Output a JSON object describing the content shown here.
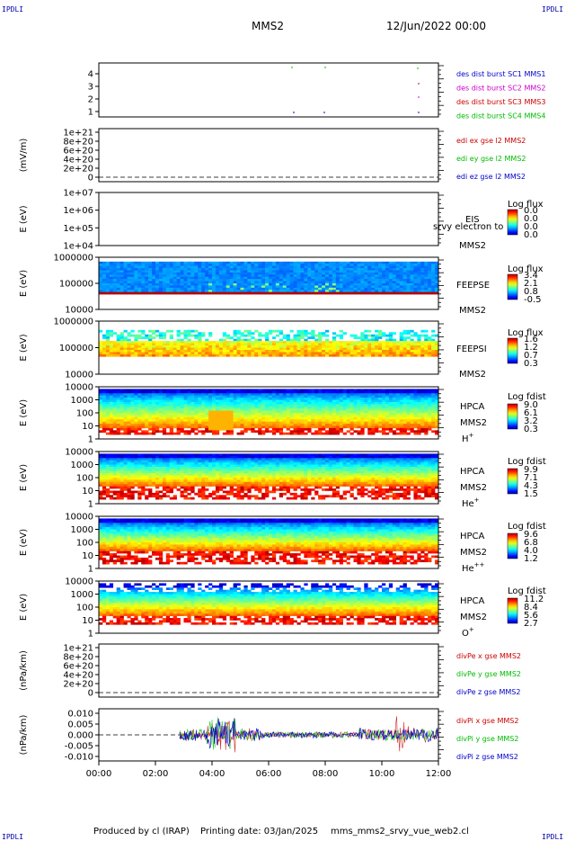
{
  "header": {
    "corner_left_top": "IPDLI",
    "corner_right_top": "IPDLI",
    "corner_left_bottom": "IPDLI",
    "corner_right_bottom": "IPDLI",
    "spacecraft": "MMS2",
    "datetime": "12/Jun/2022 00:00"
  },
  "footer": {
    "produced_by": "Produced by cl (IRAP)",
    "printing_date": "Printing date: 03/Jan/2025",
    "filename": "mms_mms2_srvy_vue_web2.cl"
  },
  "colors": {
    "blue": "#0000cc",
    "magenta": "#cc00cc",
    "red": "#cc0000",
    "green": "#00bb00"
  },
  "chart_data": [
    {
      "type": "line",
      "id": "burst",
      "ylabel": "",
      "yticks": [
        "1",
        "2",
        "3",
        "4"
      ],
      "legend": [
        "des dist burst SC1 MMS1",
        "des dist burst SC2 MMS2",
        "des dist burst SC3 MMS3",
        "des dist burst SC4 MMS4"
      ]
    },
    {
      "type": "line",
      "id": "edi",
      "ylabel": "(mV/m)",
      "yticks": [
        "1e+21",
        "8e+20",
        "6e+20",
        "4e+20",
        "2e+20",
        "0"
      ],
      "legend": [
        "edi ex gse l2 MMS2",
        "edi ey gse l2 MMS2",
        "edi ez gse l2 MMS2"
      ]
    },
    {
      "type": "heatmap",
      "id": "eis",
      "ylabel": "E (eV)",
      "yticks": [
        "1e+07",
        "1e+06",
        "1e+05",
        "1e+04"
      ],
      "label_lines": [
        "EIS",
        "srvy electron to",
        "MMS2"
      ],
      "colorbar_title": "Log flux",
      "colorbar_ticks": [
        "0.0",
        "0.0",
        "0.0",
        "0.0"
      ]
    },
    {
      "type": "heatmap",
      "id": "feeps_e",
      "ylabel": "E (eV)",
      "yticks": [
        "1000000",
        "100000",
        "10000"
      ],
      "label_lines": [
        "FEEPSE",
        "MMS2"
      ],
      "colorbar_title": "Log flux",
      "colorbar_ticks": [
        "3.4",
        "2.1",
        "0.8",
        "-0.5"
      ]
    },
    {
      "type": "heatmap",
      "id": "feeps_i",
      "ylabel": "E (eV)",
      "yticks": [
        "1000000",
        "100000",
        "10000"
      ],
      "label_lines": [
        "FEEPSI",
        "MMS2"
      ],
      "colorbar_title": "Log flux",
      "colorbar_ticks": [
        "1.6",
        "1.2",
        "0.7",
        "0.3"
      ]
    },
    {
      "type": "heatmap",
      "id": "hpca_h",
      "ylabel": "E (eV)",
      "yticks": [
        "10000",
        "1000",
        "100",
        "10",
        "1"
      ],
      "label_lines": [
        "HPCA",
        "MMS2"
      ],
      "species": "H",
      "species_sup": "+",
      "colorbar_title": "Log fdist",
      "colorbar_ticks": [
        "9.0",
        "6.1",
        "3.2",
        "0.3"
      ]
    },
    {
      "type": "heatmap",
      "id": "hpca_he",
      "ylabel": "E (eV)",
      "yticks": [
        "10000",
        "1000",
        "100",
        "10",
        "1"
      ],
      "label_lines": [
        "HPCA",
        "MMS2"
      ],
      "species": "He",
      "species_sup": "+",
      "colorbar_title": "Log fdist",
      "colorbar_ticks": [
        "9.9",
        "7.1",
        "4.3",
        "1.5"
      ]
    },
    {
      "type": "heatmap",
      "id": "hpca_hepp",
      "ylabel": "E (eV)",
      "yticks": [
        "10000",
        "1000",
        "100",
        "10",
        "1"
      ],
      "label_lines": [
        "HPCA",
        "MMS2"
      ],
      "species": "He",
      "species_sup": "++",
      "colorbar_title": "Log fdist",
      "colorbar_ticks": [
        "9.6",
        "6.8",
        "4.0",
        "1.2"
      ]
    },
    {
      "type": "heatmap",
      "id": "hpca_o",
      "ylabel": "E (eV)",
      "yticks": [
        "10000",
        "1000",
        "100",
        "10",
        "1"
      ],
      "label_lines": [
        "HPCA",
        "MMS2"
      ],
      "species": "O",
      "species_sup": "+",
      "colorbar_title": "Log fdist",
      "colorbar_ticks": [
        "11.2",
        "8.4",
        "5.6",
        "2.7"
      ]
    },
    {
      "type": "line",
      "id": "divpe",
      "ylabel": "(nPa/km)",
      "yticks": [
        "1e+21",
        "8e+20",
        "6e+20",
        "4e+20",
        "2e+20",
        "0"
      ],
      "legend": [
        "divPe x gse MMS2",
        "divPe y gse MMS2",
        "divPe z gse MMS2"
      ]
    },
    {
      "type": "line",
      "id": "divpi",
      "ylabel": "(nPa/km)",
      "yticks": [
        "0.010",
        "0.005",
        "0.000",
        "-0.005",
        "-0.010"
      ],
      "ylim": [
        -0.013,
        0.013
      ],
      "legend": [
        "divPi x gse MMS2",
        "divPi y gse MMS2",
        "divPi z gse MMS2"
      ]
    }
  ],
  "xaxis": {
    "ticks": [
      "00:00",
      "02:00",
      "04:00",
      "06:00",
      "08:00",
      "10:00",
      "12:00"
    ]
  }
}
